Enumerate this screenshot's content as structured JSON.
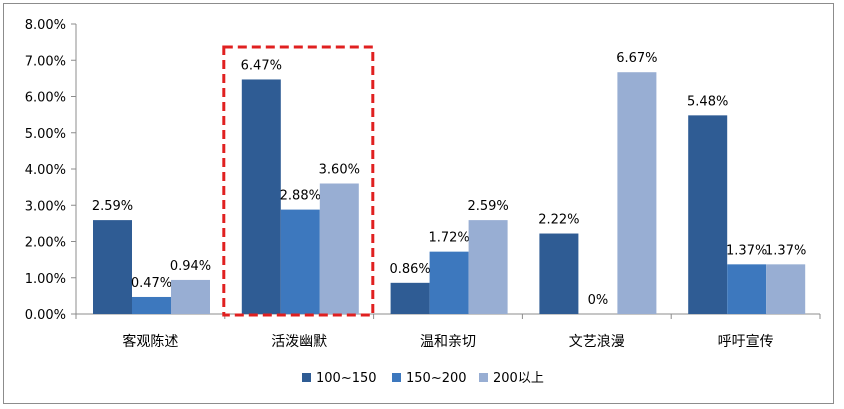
{
  "chart_data": {
    "type": "bar",
    "categories": [
      "客观陈述",
      "活泼幽默",
      "温和亲切",
      "文艺浪漫",
      "呼吁宣传"
    ],
    "series": [
      {
        "name": "100~150",
        "values": [
          2.59,
          6.47,
          0.86,
          2.22,
          5.48
        ],
        "labels": [
          "2.59%",
          "6.47%",
          "0.86%",
          "2.22%",
          "5.48%"
        ],
        "color": "#2f5c94"
      },
      {
        "name": "150~200",
        "values": [
          0.47,
          2.88,
          1.72,
          0.0,
          1.37
        ],
        "labels": [
          "0.47%",
          "2.88%",
          "1.72%",
          "0%",
          "1.37%"
        ],
        "color": "#3d78be"
      },
      {
        "name": "200以上",
        "values": [
          0.94,
          3.6,
          2.59,
          6.67,
          1.37
        ],
        "labels": [
          "0.94%",
          "3.60%",
          "2.59%",
          "6.67%",
          "1.37%"
        ],
        "color": "#98aed3"
      }
    ],
    "ylim": [
      0,
      8
    ],
    "yticks": [
      "0.00%",
      "1.00%",
      "2.00%",
      "3.00%",
      "4.00%",
      "5.00%",
      "6.00%",
      "7.00%",
      "8.00%"
    ],
    "grid": false,
    "legend_position": "bottom",
    "highlight": {
      "category": "活泼幽默",
      "style": "red dashed box"
    },
    "colors": {
      "highlight": "#e02020",
      "axis": "#8c8c8c"
    }
  }
}
